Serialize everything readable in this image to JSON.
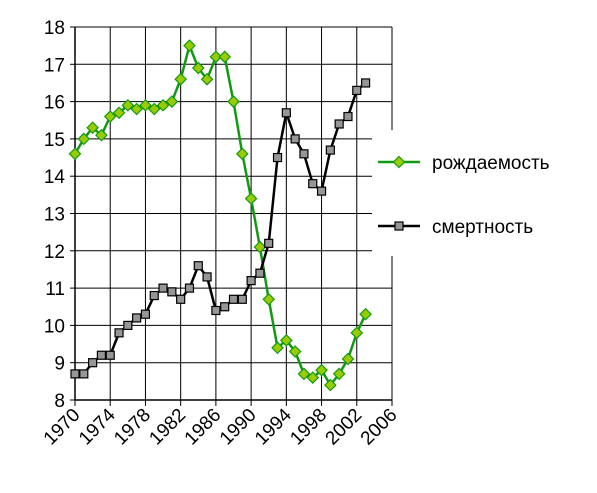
{
  "chart_data": {
    "type": "line",
    "x": [
      1970,
      1971,
      1972,
      1973,
      1974,
      1975,
      1976,
      1977,
      1978,
      1979,
      1980,
      1981,
      1982,
      1983,
      1984,
      1985,
      1986,
      1987,
      1988,
      1989,
      1990,
      1991,
      1992,
      1993,
      1994,
      1995,
      1996,
      1997,
      1998,
      1999,
      2000,
      2001,
      2002,
      2003
    ],
    "series": [
      {
        "name": "рождаемость",
        "color": "#119a11",
        "marker_fill": "#99cc00",
        "values": [
          14.6,
          15.0,
          15.3,
          15.1,
          15.6,
          15.7,
          15.9,
          15.8,
          15.9,
          15.8,
          15.9,
          16.0,
          16.6,
          17.5,
          16.9,
          16.6,
          17.2,
          17.2,
          16.0,
          14.6,
          13.4,
          12.1,
          10.7,
          9.4,
          9.6,
          9.3,
          8.7,
          8.6,
          8.8,
          8.4,
          8.7,
          9.1,
          9.8,
          10.3
        ]
      },
      {
        "name": "смертность",
        "color": "#000000",
        "marker_fill": "#969696",
        "values": [
          8.7,
          8.7,
          9.0,
          9.2,
          9.2,
          9.8,
          10.0,
          10.2,
          10.3,
          10.8,
          11.0,
          10.9,
          10.7,
          11.0,
          11.6,
          11.3,
          10.4,
          10.5,
          10.7,
          10.7,
          11.2,
          11.4,
          12.2,
          14.5,
          15.7,
          15.0,
          14.6,
          13.8,
          13.6,
          14.7,
          15.4,
          15.6,
          16.3,
          16.5
        ]
      }
    ],
    "xlim": [
      1970,
      2006
    ],
    "xticks": [
      1970,
      1974,
      1978,
      1982,
      1986,
      1990,
      1994,
      1998,
      2002,
      2006
    ],
    "ylim": [
      8,
      18
    ],
    "yticks": [
      8,
      9,
      10,
      11,
      12,
      13,
      14,
      15,
      16,
      17,
      18
    ],
    "grid": true,
    "legend": "right"
  }
}
